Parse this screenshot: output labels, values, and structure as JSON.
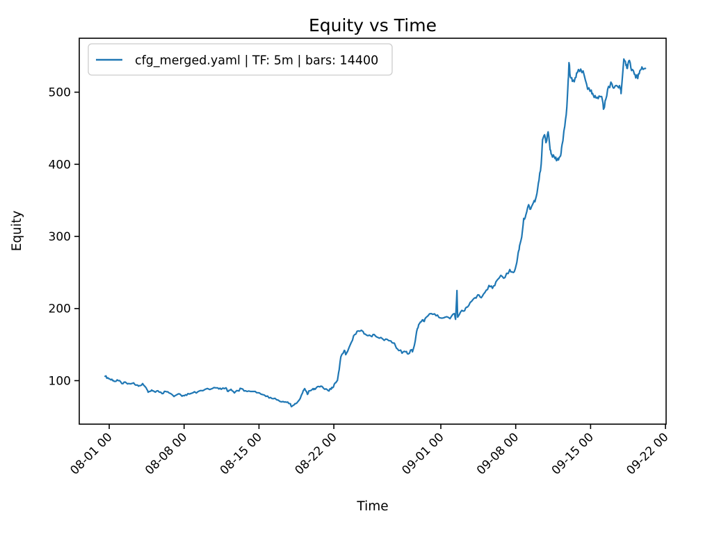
{
  "chart_data": {
    "type": "line",
    "title": "Equity vs Time",
    "xlabel": "Time",
    "ylabel": "Equity",
    "grid": false,
    "legend": {
      "position": "upper left",
      "entries": [
        {
          "label": "cfg_merged.yaml | TF: 5m | bars: 14400",
          "color": "#1f77b4"
        }
      ]
    },
    "x_axis": {
      "unit": "days since 08-01 00:00",
      "lim": [
        -2.8,
        52.06
      ],
      "ticks": [
        {
          "day": 0,
          "label": "08-01 00"
        },
        {
          "day": 7,
          "label": "08-08 00"
        },
        {
          "day": 14,
          "label": "08-15 00"
        },
        {
          "day": 21,
          "label": "08-22 00"
        },
        {
          "day": 31,
          "label": "09-01 00"
        },
        {
          "day": 38,
          "label": "09-08 00"
        },
        {
          "day": 45,
          "label": "09-15 00"
        },
        {
          "day": 52,
          "label": "09-22 00"
        }
      ],
      "tick_rotation_deg": 45
    },
    "y_axis": {
      "lim": [
        39.7,
        574.8
      ],
      "ticks": [
        100,
        200,
        300,
        400,
        500
      ]
    },
    "series": [
      {
        "name": "cfg_merged.yaml | TF: 5m | bars: 14400",
        "color": "#1f77b4",
        "points": [
          [
            -0.39,
            106
          ],
          [
            -0.13,
            104
          ],
          [
            0.07,
            102
          ],
          [
            0.33,
            100
          ],
          [
            0.52,
            99
          ],
          [
            0.85,
            100
          ],
          [
            1.17,
            96
          ],
          [
            1.5,
            98
          ],
          [
            1.82,
            96
          ],
          [
            2.28,
            97
          ],
          [
            2.6,
            94
          ],
          [
            2.8,
            93
          ],
          [
            3.12,
            96
          ],
          [
            3.45,
            90
          ],
          [
            3.64,
            84
          ],
          [
            3.97,
            87
          ],
          [
            4.2,
            85
          ],
          [
            4.55,
            86
          ],
          [
            4.94,
            82
          ],
          [
            5.27,
            85
          ],
          [
            5.59,
            83
          ],
          [
            6.05,
            78
          ],
          [
            6.37,
            81
          ],
          [
            6.7,
            80
          ],
          [
            7.02,
            79
          ],
          [
            7.35,
            82
          ],
          [
            7.8,
            83
          ],
          [
            8.32,
            85
          ],
          [
            8.97,
            88
          ],
          [
            9.62,
            89
          ],
          [
            10.14,
            90
          ],
          [
            10.47,
            88
          ],
          [
            10.92,
            90
          ],
          [
            11.12,
            85
          ],
          [
            11.38,
            88
          ],
          [
            11.7,
            83
          ],
          [
            12.03,
            86
          ],
          [
            12.35,
            89
          ],
          [
            12.74,
            86
          ],
          [
            13.2,
            85
          ],
          [
            13.65,
            85
          ],
          [
            14.04,
            83
          ],
          [
            14.5,
            80
          ],
          [
            14.95,
            76
          ],
          [
            15.34,
            75
          ],
          [
            15.8,
            73
          ],
          [
            16.25,
            71
          ],
          [
            16.58,
            70
          ],
          [
            16.9,
            68
          ],
          [
            17.03,
            64
          ],
          [
            17.23,
            66
          ],
          [
            17.42,
            68
          ],
          [
            17.75,
            73
          ],
          [
            18.07,
            83
          ],
          [
            18.27,
            89
          ],
          [
            18.53,
            81
          ],
          [
            18.72,
            86
          ],
          [
            19.05,
            89
          ],
          [
            19.25,
            88
          ],
          [
            19.57,
            92
          ],
          [
            19.9,
            92
          ],
          [
            20.16,
            88
          ],
          [
            20.48,
            86
          ],
          [
            20.68,
            89
          ],
          [
            20.87,
            90
          ],
          [
            21.13,
            97
          ],
          [
            21.33,
            100
          ],
          [
            21.5,
            115
          ],
          [
            21.65,
            133
          ],
          [
            21.98,
            142
          ],
          [
            22.11,
            136
          ],
          [
            22.63,
            153
          ],
          [
            22.95,
            164
          ],
          [
            23.28,
            169
          ],
          [
            23.73,
            168
          ],
          [
            24.06,
            163
          ],
          [
            24.45,
            162
          ],
          [
            24.77,
            164
          ],
          [
            25.1,
            160
          ],
          [
            25.55,
            158
          ],
          [
            26.01,
            157
          ],
          [
            26.33,
            155
          ],
          [
            26.66,
            152
          ],
          [
            26.85,
            145
          ],
          [
            27.18,
            142
          ],
          [
            27.37,
            138
          ],
          [
            27.7,
            140
          ],
          [
            27.96,
            137
          ],
          [
            28.28,
            143
          ],
          [
            28.35,
            140
          ],
          [
            28.61,
            155
          ],
          [
            28.8,
            172
          ],
          [
            29.0,
            179
          ],
          [
            29.26,
            184
          ],
          [
            29.45,
            182
          ],
          [
            29.65,
            188
          ],
          [
            30.1,
            193
          ],
          [
            30.56,
            190
          ],
          [
            30.95,
            187
          ],
          [
            31.4,
            188
          ],
          [
            31.86,
            186
          ],
          [
            32.25,
            193
          ],
          [
            32.38,
            185
          ],
          [
            32.51,
            225
          ],
          [
            32.57,
            188
          ],
          [
            32.83,
            195
          ],
          [
            33.22,
            197
          ],
          [
            33.48,
            202
          ],
          [
            33.87,
            210
          ],
          [
            34.2,
            215
          ],
          [
            34.46,
            219
          ],
          [
            34.78,
            215
          ],
          [
            35.11,
            222
          ],
          [
            35.5,
            232
          ],
          [
            35.83,
            228
          ],
          [
            36.15,
            237
          ],
          [
            36.61,
            246
          ],
          [
            37.0,
            243
          ],
          [
            37.45,
            254
          ],
          [
            37.78,
            250
          ],
          [
            38.04,
            260
          ],
          [
            38.23,
            277
          ],
          [
            38.36,
            287
          ],
          [
            38.56,
            299
          ],
          [
            38.75,
            325
          ],
          [
            38.95,
            330
          ],
          [
            39.21,
            344
          ],
          [
            39.4,
            338
          ],
          [
            39.66,
            347
          ],
          [
            39.86,
            352
          ],
          [
            39.99,
            360
          ],
          [
            40.18,
            378
          ],
          [
            40.38,
            400
          ],
          [
            40.51,
            434
          ],
          [
            40.7,
            441
          ],
          [
            40.83,
            430
          ],
          [
            41.03,
            445
          ],
          [
            41.22,
            420
          ],
          [
            41.35,
            414
          ],
          [
            41.61,
            410
          ],
          [
            41.81,
            405
          ],
          [
            42.0,
            406
          ],
          [
            42.2,
            412
          ],
          [
            42.33,
            427
          ],
          [
            42.59,
            453
          ],
          [
            42.78,
            479
          ],
          [
            42.91,
            517
          ],
          [
            42.98,
            541
          ],
          [
            43.11,
            521
          ],
          [
            43.3,
            515
          ],
          [
            43.56,
            520
          ],
          [
            43.76,
            527
          ],
          [
            44.08,
            532
          ],
          [
            44.41,
            523
          ],
          [
            44.73,
            504
          ],
          [
            45.06,
            503
          ],
          [
            45.25,
            496
          ],
          [
            45.51,
            492
          ],
          [
            45.71,
            491
          ],
          [
            45.97,
            494
          ],
          [
            46.16,
            485
          ],
          [
            46.23,
            477
          ],
          [
            46.42,
            490
          ],
          [
            46.68,
            508
          ],
          [
            47.01,
            511
          ],
          [
            47.2,
            506
          ],
          [
            47.53,
            508
          ],
          [
            47.79,
            504
          ],
          [
            47.85,
            498
          ],
          [
            48.11,
            546
          ],
          [
            48.31,
            537
          ],
          [
            48.44,
            533
          ],
          [
            48.63,
            544
          ],
          [
            48.83,
            530
          ],
          [
            49.09,
            525
          ],
          [
            49.28,
            522
          ],
          [
            49.41,
            519
          ],
          [
            49.61,
            530
          ],
          [
            49.8,
            535
          ],
          [
            50.13,
            533
          ]
        ]
      }
    ]
  },
  "colors": {
    "line": "#1f77b4",
    "text": "#000000",
    "spine": "#000000",
    "legend_border": "#cccccc",
    "background": "#ffffff"
  }
}
